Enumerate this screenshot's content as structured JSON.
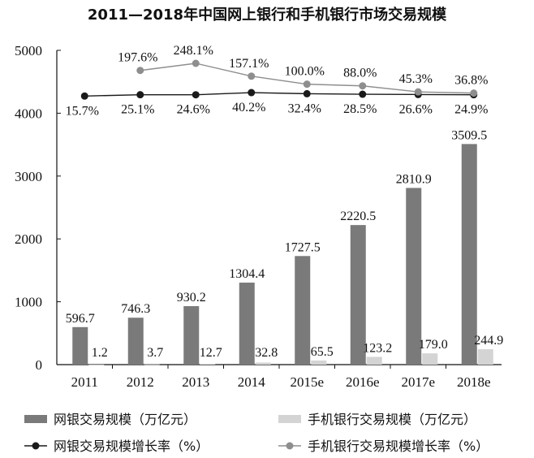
{
  "chart_data": {
    "type": "bar",
    "title": "2011—2018年中国网上银行和手机银行市场交易规模",
    "categories": [
      "2011",
      "2012",
      "2013",
      "2014",
      "2015e",
      "2016e",
      "2017e",
      "2018e"
    ],
    "yticks": [
      "0",
      "1000",
      "2000",
      "3000",
      "4000",
      "5000"
    ],
    "ylim": [
      0,
      5000
    ],
    "bar_series": [
      {
        "name": "网银交易规模（万亿元）",
        "color": "#7a7a7a",
        "values": [
          596.7,
          746.3,
          930.2,
          1304.4,
          1727.5,
          2220.5,
          2810.9,
          3509.5
        ],
        "labels": [
          "596.7",
          "746.3",
          "930.2",
          "1304.4",
          "1727.5",
          "2220.5",
          "2810.9",
          "3509.5"
        ]
      },
      {
        "name": "手机银行交易规模（万亿元）",
        "color": "#d4d4d4",
        "values": [
          1.2,
          3.7,
          12.7,
          32.8,
          65.5,
          123.2,
          179.0,
          244.9
        ],
        "labels": [
          "1.2",
          "3.7",
          "12.7",
          "32.8",
          "65.5",
          "123.2",
          "179.0",
          "244.9"
        ]
      }
    ],
    "line_series": [
      {
        "name": "网银交易规模增长率（%）",
        "color": "#1a1a1a",
        "values": [
          15.7,
          25.1,
          24.6,
          40.2,
          32.4,
          28.5,
          26.6,
          24.9
        ],
        "labels": [
          "15.7%",
          "25.1%",
          "24.6%",
          "40.2%",
          "32.4%",
          "28.5%",
          "26.6%",
          "24.9%"
        ]
      },
      {
        "name": "手机银行交易规模增长率（%）",
        "color": "#8e8e8e",
        "values": [
          null,
          197.6,
          248.1,
          157.1,
          100.0,
          88.0,
          45.3,
          36.8
        ],
        "labels": [
          "",
          "197.6%",
          "248.1%",
          "157.1%",
          "100.0%",
          "88.0%",
          "45.3%",
          "36.8%"
        ]
      }
    ],
    "grid": false,
    "legend_position": "bottom"
  }
}
